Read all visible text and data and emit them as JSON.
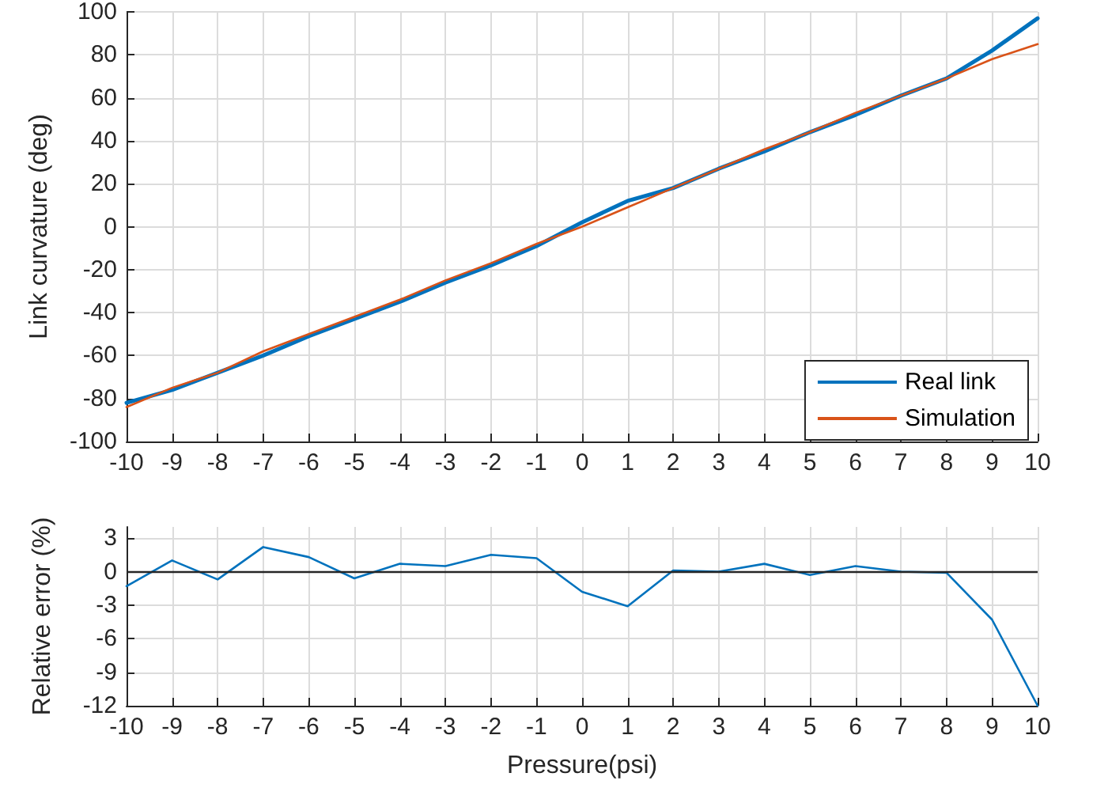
{
  "chart_data": [
    {
      "type": "line",
      "ylabel": "Link curvature (deg)",
      "x": [
        -10,
        -9,
        -8,
        -7,
        -6,
        -5,
        -4,
        -3,
        -2,
        -1,
        0,
        1,
        2,
        3,
        4,
        5,
        6,
        7,
        8,
        9,
        10
      ],
      "series": [
        {
          "name": "Real link",
          "color": "#0072bd",
          "values": [
            -82,
            -76,
            -68,
            -60,
            -51,
            -43,
            -35,
            -26,
            -18,
            -9,
            2,
            12,
            18,
            27,
            35,
            44,
            52,
            61,
            69,
            82,
            97
          ]
        },
        {
          "name": "Simulation",
          "color": "#d95319",
          "values": [
            -84,
            -75,
            -68,
            -58,
            -50,
            -42,
            -34,
            -25,
            -17,
            -8,
            0,
            9,
            18,
            27,
            36,
            44,
            53,
            61,
            69,
            78,
            85
          ]
        }
      ],
      "xlim": [
        -10,
        10
      ],
      "xticks": [
        -10,
        -9,
        -8,
        -7,
        -6,
        -5,
        -4,
        -3,
        -2,
        -1,
        0,
        1,
        2,
        3,
        4,
        5,
        6,
        7,
        8,
        9,
        10
      ],
      "ylim": [
        -100,
        100
      ],
      "yticks": [
        -100,
        -80,
        -60,
        -40,
        -20,
        0,
        20,
        40,
        60,
        80,
        100
      ],
      "grid": true,
      "legend": "bottom right",
      "marker": "none",
      "line_style": "solid"
    },
    {
      "type": "line",
      "xlabel": "Pressure(psi)",
      "ylabel": "Relative error (%)",
      "x": [
        -10,
        -9,
        -8,
        -7,
        -6,
        -5,
        -4,
        -3,
        -2,
        -1,
        0,
        1,
        2,
        3,
        4,
        5,
        6,
        7,
        8,
        9,
        10
      ],
      "series": [
        {
          "color": "#0072bd",
          "values": [
            -1.3,
            1.0,
            -0.7,
            2.2,
            1.3,
            -0.6,
            0.7,
            0.5,
            1.5,
            1.2,
            -1.8,
            -3.1,
            0.1,
            0,
            0.7,
            -0.3,
            0.5,
            0,
            -0.1,
            -4.3,
            -12
          ]
        }
      ],
      "xlim": [
        -10,
        10
      ],
      "xticks": [
        -10,
        -9,
        -8,
        -7,
        -6,
        -5,
        -4,
        -3,
        -2,
        -1,
        0,
        1,
        2,
        3,
        4,
        5,
        6,
        7,
        8,
        9,
        10
      ],
      "ylim": [
        -12,
        4
      ],
      "yticks": [
        -12,
        -9,
        -6,
        -3,
        0,
        3
      ],
      "ref_lines": [
        {
          "axis": "y",
          "value": 0,
          "color": "#262626"
        }
      ],
      "grid": true,
      "marker": "none",
      "line_style": "solid"
    }
  ]
}
